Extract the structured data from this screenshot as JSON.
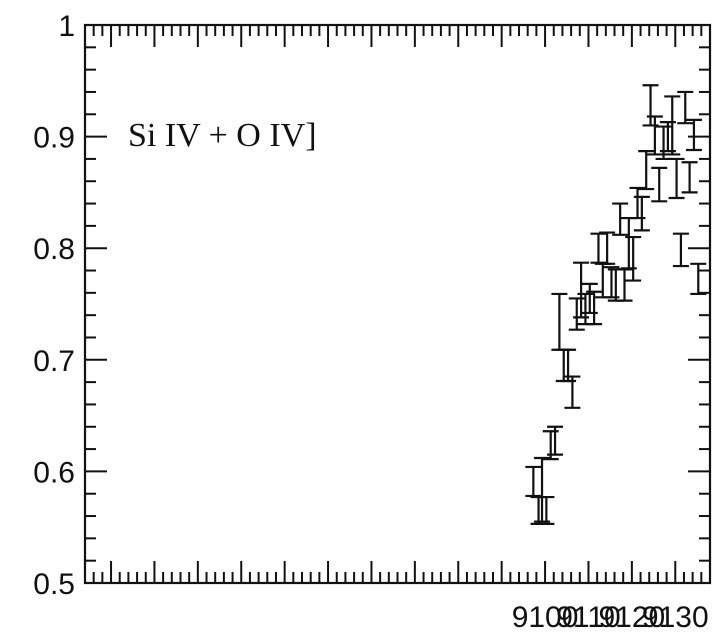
{
  "chart_data": {
    "type": "scatter",
    "title": "",
    "xlabel": "",
    "ylabel": "",
    "annotation": "Si IV + O IV]",
    "xlim": [
      8994,
      9138
    ],
    "ylim": [
      0.5,
      1.0
    ],
    "x_tick_labels": [
      "9100",
      "9110",
      "9120",
      "9130"
    ],
    "y_tick_labels": [
      "0.5",
      "0.6",
      "0.7",
      "0.8",
      "0.9",
      "1"
    ],
    "grid": false,
    "legend": "none",
    "series": [
      {
        "points": [
          {
            "x": 9097.3,
            "lo": 0.578,
            "hi": 0.604
          },
          {
            "x": 9098.5,
            "lo": 0.553,
            "hi": 0.577
          },
          {
            "x": 9099.3,
            "lo": 0.555,
            "hi": 0.612
          },
          {
            "x": 9100.3,
            "lo": 0.553,
            "hi": 0.577
          },
          {
            "x": 9101.3,
            "lo": 0.611,
            "hi": 0.636
          },
          {
            "x": 9102.3,
            "lo": 0.615,
            "hi": 0.64
          },
          {
            "x": 9103.3,
            "lo": 0.709,
            "hi": 0.759
          },
          {
            "x": 9104.3,
            "lo": 0.681,
            "hi": 0.709
          },
          {
            "x": 9105.3,
            "lo": 0.681,
            "hi": 0.709
          },
          {
            "x": 9106.3,
            "lo": 0.657,
            "hi": 0.685
          },
          {
            "x": 9107.3,
            "lo": 0.727,
            "hi": 0.755
          },
          {
            "x": 9108.3,
            "lo": 0.738,
            "hi": 0.787
          },
          {
            "x": 9109.3,
            "lo": 0.732,
            "hi": 0.759
          },
          {
            "x": 9110.3,
            "lo": 0.742,
            "hi": 0.768
          },
          {
            "x": 9111.3,
            "lo": 0.732,
            "hi": 0.761
          },
          {
            "x": 9112.3,
            "lo": 0.787,
            "hi": 0.813
          },
          {
            "x": 9113.3,
            "lo": 0.756,
            "hi": 0.786
          },
          {
            "x": 9114.3,
            "lo": 0.786,
            "hi": 0.814
          },
          {
            "x": 9115.3,
            "lo": 0.756,
            "hi": 0.783
          },
          {
            "x": 9116.3,
            "lo": 0.753,
            "hi": 0.781
          },
          {
            "x": 9117.3,
            "lo": 0.812,
            "hi": 0.84
          },
          {
            "x": 9118.3,
            "lo": 0.753,
            "hi": 0.781
          },
          {
            "x": 9119.3,
            "lo": 0.782,
            "hi": 0.827
          },
          {
            "x": 9120.3,
            "lo": 0.771,
            "hi": 0.81
          },
          {
            "x": 9121.3,
            "lo": 0.827,
            "hi": 0.854
          },
          {
            "x": 9122.3,
            "lo": 0.816,
            "hi": 0.846
          },
          {
            "x": 9123.3,
            "lo": 0.853,
            "hi": 0.887
          },
          {
            "x": 9124.3,
            "lo": 0.91,
            "hi": 0.946
          },
          {
            "x": 9125.3,
            "lo": 0.884,
            "hi": 0.918
          },
          {
            "x": 9126.3,
            "lo": 0.842,
            "hi": 0.872
          },
          {
            "x": 9127.3,
            "lo": 0.88,
            "hi": 0.909
          },
          {
            "x": 9128.3,
            "lo": 0.887,
            "hi": 0.913
          },
          {
            "x": 9129.3,
            "lo": 0.884,
            "hi": 0.936
          },
          {
            "x": 9130.3,
            "lo": 0.845,
            "hi": 0.88
          },
          {
            "x": 9131.3,
            "lo": 0.784,
            "hi": 0.813
          },
          {
            "x": 9132.3,
            "lo": 0.912,
            "hi": 0.94
          },
          {
            "x": 9133.3,
            "lo": 0.85,
            "hi": 0.877
          },
          {
            "x": 9134.3,
            "lo": 0.888,
            "hi": 0.915
          },
          {
            "x": 9135.3,
            "lo": 0.759,
            "hi": 0.786
          }
        ]
      }
    ]
  }
}
